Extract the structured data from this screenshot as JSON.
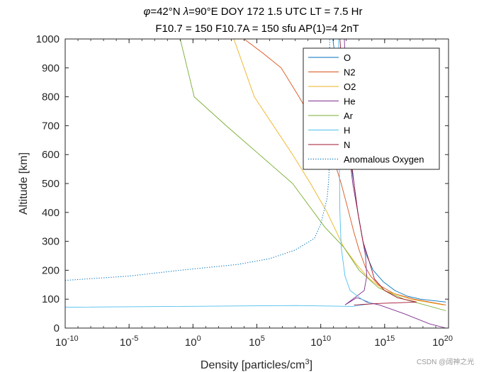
{
  "chart_data": {
    "type": "line",
    "title_lines": [
      [
        "φ",
        "=42°N ",
        "λ",
        "=90°E DOY 172 1.5 UTC LT = 7.5 Hr"
      ],
      [
        "F10.7 = 150 F10.7A = 150 sfu AP(1)=4 2nT"
      ]
    ],
    "xlabel": "Density [particles/cm",
    "xlabel_sup": "3",
    "xlabel_end": "]",
    "ylabel": "Altitude [km]",
    "xscale": "log",
    "xlim_exp": [
      -10,
      20
    ],
    "ylim": [
      0,
      1000
    ],
    "x_ticks": [
      {
        "base": "10",
        "exp": "-10",
        "e": -10
      },
      {
        "base": "10",
        "exp": "-5",
        "e": -5
      },
      {
        "base": "10",
        "exp": "0",
        "e": 0
      },
      {
        "base": "10",
        "exp": "5",
        "e": 5
      },
      {
        "base": "10",
        "exp": "10",
        "e": 10
      },
      {
        "base": "10",
        "exp": "15",
        "e": 15
      },
      {
        "base": "10",
        "exp": "20",
        "e": 20
      }
    ],
    "y_ticks": [
      0,
      100,
      200,
      300,
      400,
      500,
      600,
      700,
      800,
      900,
      1000
    ],
    "legend_position": "top-right",
    "series": [
      {
        "name": "O",
        "color": "#0072BD",
        "dash": false,
        "log10_density": [
          19.8,
          17.8,
          16.8,
          15.8,
          14.9,
          14.1,
          13.6,
          13.3,
          12.9,
          12.6,
          12.25,
          11.95,
          11.6,
          11.3,
          11.0,
          10.95
        ],
        "altitude_km": [
          90,
          100,
          110,
          130,
          160,
          200,
          250,
          300,
          400,
          500,
          600,
          700,
          800,
          900,
          980,
          1000
        ]
      },
      {
        "name": "N2",
        "color": "#D95319",
        "dash": false,
        "log10_density": [
          19.8,
          17.3,
          15.7,
          14.5,
          13.9,
          13.5,
          13.25,
          13.0,
          12.6,
          12.2,
          11.6,
          10.9,
          9.6,
          8.3,
          6.9,
          5.5,
          4.0
        ],
        "altitude_km": [
          80,
          100,
          120,
          150,
          180,
          210,
          240,
          270,
          330,
          400,
          500,
          600,
          700,
          800,
          900,
          950,
          1000
        ]
      },
      {
        "name": "O2",
        "color": "#EDB120",
        "dash": false,
        "log10_density": [
          19.6,
          17.0,
          15.0,
          13.8,
          12.8,
          11.8,
          10.5,
          9.2,
          7.8,
          6.3,
          4.8,
          3.2
        ],
        "altitude_km": [
          80,
          100,
          130,
          170,
          220,
          280,
          400,
          500,
          600,
          700,
          800,
          1000
        ]
      },
      {
        "name": "He",
        "color": "#7E2F8E",
        "dash": false,
        "log10_density": [
          19.8,
          18.5,
          16.5,
          14.6,
          13.6,
          13.2,
          12.8,
          11.9,
          12.5,
          13.4,
          13.6,
          13.5,
          13.3,
          12.9,
          12.5,
          12.25,
          12.0,
          11.85
        ],
        "altitude_km": [
          0,
          15,
          50,
          80,
          90,
          100,
          105,
          80,
          100,
          130,
          180,
          250,
          300,
          400,
          500,
          600,
          800,
          1000
        ]
      },
      {
        "name": "Ar",
        "color": "#77AC30",
        "dash": false,
        "log10_density": [
          19.8,
          16.5,
          14.5,
          13.0,
          11.8,
          10.3,
          7.8,
          5.2,
          2.6,
          0.1,
          -1.0
        ],
        "altitude_km": [
          60,
          100,
          140,
          200,
          280,
          350,
          500,
          600,
          700,
          800,
          1000
        ]
      },
      {
        "name": "H",
        "color": "#4DBEEE",
        "dash": false,
        "log10_density": [
          -10,
          8.0,
          12.5,
          14.0,
          13.2,
          12.3,
          11.9,
          11.6,
          11.5,
          11.45,
          11.4,
          11.4
        ],
        "altitude_km": [
          72,
          78,
          75,
          85,
          100,
          130,
          180,
          280,
          400,
          600,
          800,
          1000
        ]
      },
      {
        "name": "N",
        "color": "#A2142F",
        "dash": false,
        "log10_density": [
          12.6,
          14.5,
          17.5,
          16.0,
          15.0,
          14.2,
          13.8,
          13.3,
          12.9,
          12.6,
          12.35,
          12.05,
          11.75,
          11.5
        ],
        "altitude_km": [
          80,
          85,
          90,
          105,
          130,
          170,
          230,
          300,
          400,
          500,
          600,
          700,
          850,
          1000
        ]
      },
      {
        "name": "Anomalous Oxygen",
        "color": "#0072BD",
        "dash": true,
        "log10_density": [
          -10,
          -5,
          -1,
          3.5,
          6,
          8,
          9.5,
          10.0,
          10.5,
          10.6,
          10.7,
          10.7
        ],
        "altitude_km": [
          165,
          180,
          200,
          220,
          240,
          270,
          310,
          360,
          450,
          500,
          580,
          1000
        ]
      }
    ]
  },
  "watermark": "CSDN @阔神之光"
}
